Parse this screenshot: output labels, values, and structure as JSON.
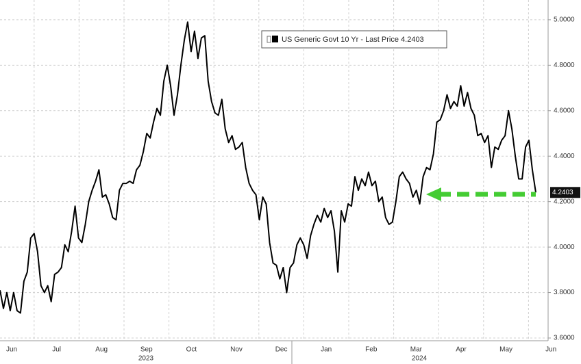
{
  "chart_data": {
    "type": "line",
    "series": [
      {
        "name": "US Generic Govt 10 Yr - Last Price 4.2403",
        "color": "#000000",
        "values": [
          3.81,
          3.73,
          3.8,
          3.72,
          3.8,
          3.72,
          3.71,
          3.85,
          3.89,
          4.04,
          4.06,
          3.98,
          3.83,
          3.8,
          3.83,
          3.76,
          3.88,
          3.89,
          3.91,
          4.01,
          3.98,
          4.07,
          4.18,
          4.04,
          4.02,
          4.1,
          4.2,
          4.25,
          4.29,
          4.34,
          4.22,
          4.23,
          4.19,
          4.13,
          4.12,
          4.25,
          4.28,
          4.28,
          4.29,
          4.28,
          4.34,
          4.36,
          4.42,
          4.5,
          4.48,
          4.55,
          4.61,
          4.58,
          4.73,
          4.8,
          4.71,
          4.58,
          4.67,
          4.8,
          4.91,
          4.99,
          4.86,
          4.95,
          4.83,
          4.92,
          4.93,
          4.73,
          4.64,
          4.59,
          4.58,
          4.65,
          4.52,
          4.46,
          4.49,
          4.43,
          4.44,
          4.46,
          4.35,
          4.28,
          4.25,
          4.23,
          4.12,
          4.22,
          4.19,
          4.02,
          3.93,
          3.92,
          3.86,
          3.91,
          3.8,
          3.91,
          3.93,
          4.01,
          4.04,
          4.01,
          3.95,
          4.05,
          4.1,
          4.14,
          4.11,
          4.17,
          4.13,
          4.16,
          4.07,
          3.89,
          4.16,
          4.11,
          4.19,
          4.18,
          4.31,
          4.25,
          4.3,
          4.27,
          4.33,
          4.27,
          4.29,
          4.2,
          4.22,
          4.13,
          4.1,
          4.11,
          4.2,
          4.31,
          4.33,
          4.3,
          4.28,
          4.22,
          4.25,
          4.19,
          4.31,
          4.35,
          4.34,
          4.41,
          4.55,
          4.56,
          4.6,
          4.67,
          4.61,
          4.64,
          4.62,
          4.71,
          4.62,
          4.68,
          4.61,
          4.58,
          4.49,
          4.5,
          4.46,
          4.49,
          4.35,
          4.44,
          4.43,
          4.47,
          4.49,
          4.6,
          4.52,
          4.4,
          4.3,
          4.3,
          4.44,
          4.47,
          4.34,
          4.2403
        ],
        "value_labels": {
          "157": "4.2403"
        }
      }
    ],
    "ylim": [
      3.588,
      5.087
    ],
    "yticks": [
      {
        "value": 3.6,
        "label": "3.6000"
      },
      {
        "value": 3.8,
        "label": "3.8000"
      },
      {
        "value": 4.0,
        "label": "4.0000"
      },
      {
        "value": 4.2,
        "label": "4.2000"
      },
      {
        "value": 4.4,
        "label": "4.4000"
      },
      {
        "value": 4.6,
        "label": "4.6000"
      },
      {
        "value": 4.8,
        "label": "4.8000"
      },
      {
        "value": 5.0,
        "label": "5.0000"
      }
    ],
    "months": [
      "Jun",
      "Jul",
      "Aug",
      "Sep",
      "Oct",
      "Nov",
      "Dec",
      "Jan",
      "Feb",
      "Mar",
      "Apr",
      "May",
      "Jun"
    ],
    "years": [
      "2023",
      "2024"
    ],
    "grid": true
  }
}
